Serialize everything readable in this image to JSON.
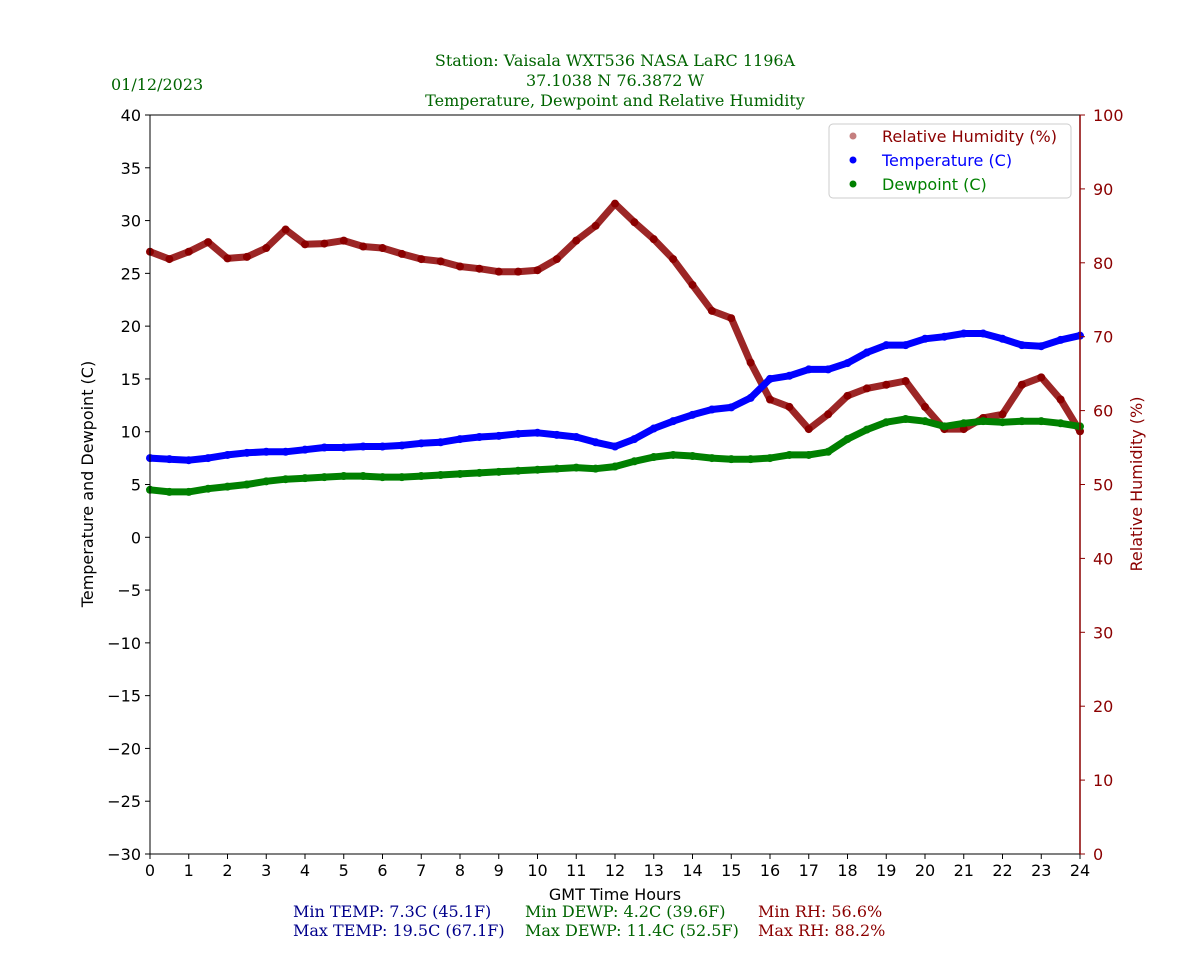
{
  "chart_data": {
    "type": "scatter",
    "date": "01/12/2023",
    "title_lines": [
      "Station:  Vaisala WXT536  NASA LaRC 1196A",
      "37.1038 N 76.3872 W",
      "Temperature, Dewpoint and Relative Humidity"
    ],
    "xlabel": "GMT Time Hours",
    "ylabel": "Temperature and Dewpoint (C)",
    "y2label": "Relative Humidity (%)",
    "xlim": [
      0,
      24
    ],
    "ylim": [
      -30,
      40
    ],
    "y2lim": [
      0,
      100
    ],
    "xticks": [
      0,
      1,
      2,
      3,
      4,
      5,
      6,
      7,
      8,
      9,
      10,
      11,
      12,
      13,
      14,
      15,
      16,
      17,
      18,
      19,
      20,
      21,
      22,
      23,
      24
    ],
    "yticks": [
      -30,
      -25,
      -20,
      -15,
      -10,
      -5,
      0,
      5,
      10,
      15,
      20,
      25,
      30,
      35,
      40
    ],
    "y2ticks": [
      0,
      10,
      20,
      30,
      40,
      50,
      60,
      70,
      80,
      90,
      100
    ],
    "legend_position": "top-right",
    "x": [
      0,
      0.5,
      1,
      1.5,
      2,
      2.5,
      3,
      3.5,
      4,
      4.5,
      5,
      5.5,
      6,
      6.5,
      7,
      7.5,
      8,
      8.5,
      9,
      9.5,
      10,
      10.5,
      11,
      11.5,
      12,
      12.5,
      13,
      13.5,
      14,
      14.5,
      15,
      15.5,
      16,
      16.5,
      17,
      17.5,
      18,
      18.5,
      19,
      19.5,
      20,
      20.5,
      21,
      21.5,
      22,
      22.5,
      23,
      23.5,
      24
    ],
    "series": [
      {
        "name": "Relative Humidity (%)",
        "axis": "right",
        "color": "#8b0000",
        "values": [
          81.5,
          80.5,
          81.5,
          82.8,
          80.6,
          80.8,
          82,
          84.5,
          82.5,
          82.6,
          83,
          82.2,
          82,
          81.2,
          80.5,
          80.2,
          79.5,
          79.2,
          78.8,
          78.8,
          79,
          80.5,
          83,
          85,
          88,
          85.5,
          83.2,
          80.5,
          77,
          73.5,
          72.5,
          66.5,
          61.5,
          60.5,
          57.5,
          59.5,
          62,
          63,
          63.5,
          64,
          60.5,
          57.5,
          57.5,
          59,
          59.5,
          63.5,
          64.5,
          61.5,
          57.2
        ]
      },
      {
        "name": "Temperature (C)",
        "axis": "left",
        "color": "#0000ff",
        "values": [
          7.5,
          7.4,
          7.3,
          7.5,
          7.8,
          8.0,
          8.1,
          8.1,
          8.3,
          8.5,
          8.5,
          8.6,
          8.6,
          8.7,
          8.9,
          9.0,
          9.3,
          9.5,
          9.6,
          9.8,
          9.9,
          9.7,
          9.5,
          9.0,
          8.6,
          9.3,
          10.3,
          11.0,
          11.6,
          12.1,
          12.3,
          13.2,
          15.0,
          15.3,
          15.9,
          15.9,
          16.5,
          17.5,
          18.2,
          18.2,
          18.8,
          19.0,
          19.3,
          19.3,
          18.8,
          18.2,
          18.1,
          18.7,
          19.1
        ]
      },
      {
        "name": "Dewpoint (C)",
        "axis": "left",
        "color": "#008000",
        "values": [
          4.5,
          4.3,
          4.3,
          4.6,
          4.8,
          5.0,
          5.3,
          5.5,
          5.6,
          5.7,
          5.8,
          5.8,
          5.7,
          5.7,
          5.8,
          5.9,
          6.0,
          6.1,
          6.2,
          6.3,
          6.4,
          6.5,
          6.6,
          6.5,
          6.7,
          7.2,
          7.6,
          7.8,
          7.7,
          7.5,
          7.4,
          7.4,
          7.5,
          7.8,
          7.8,
          8.1,
          9.3,
          10.2,
          10.9,
          11.2,
          11.0,
          10.5,
          10.8,
          11.0,
          10.9,
          11.0,
          11.0,
          10.8,
          10.5
        ]
      }
    ],
    "stats": {
      "min_temp": "Min TEMP: 7.3C (45.1F)",
      "max_temp": "Max TEMP: 19.5C (67.1F)",
      "min_dewp": "Min DEWP: 4.2C (39.6F)",
      "max_dewp": "Max DEWP: 11.4C (52.5F)",
      "min_rh": "Min RH: 56.6%",
      "max_rh": "Max RH: 88.2%"
    }
  }
}
